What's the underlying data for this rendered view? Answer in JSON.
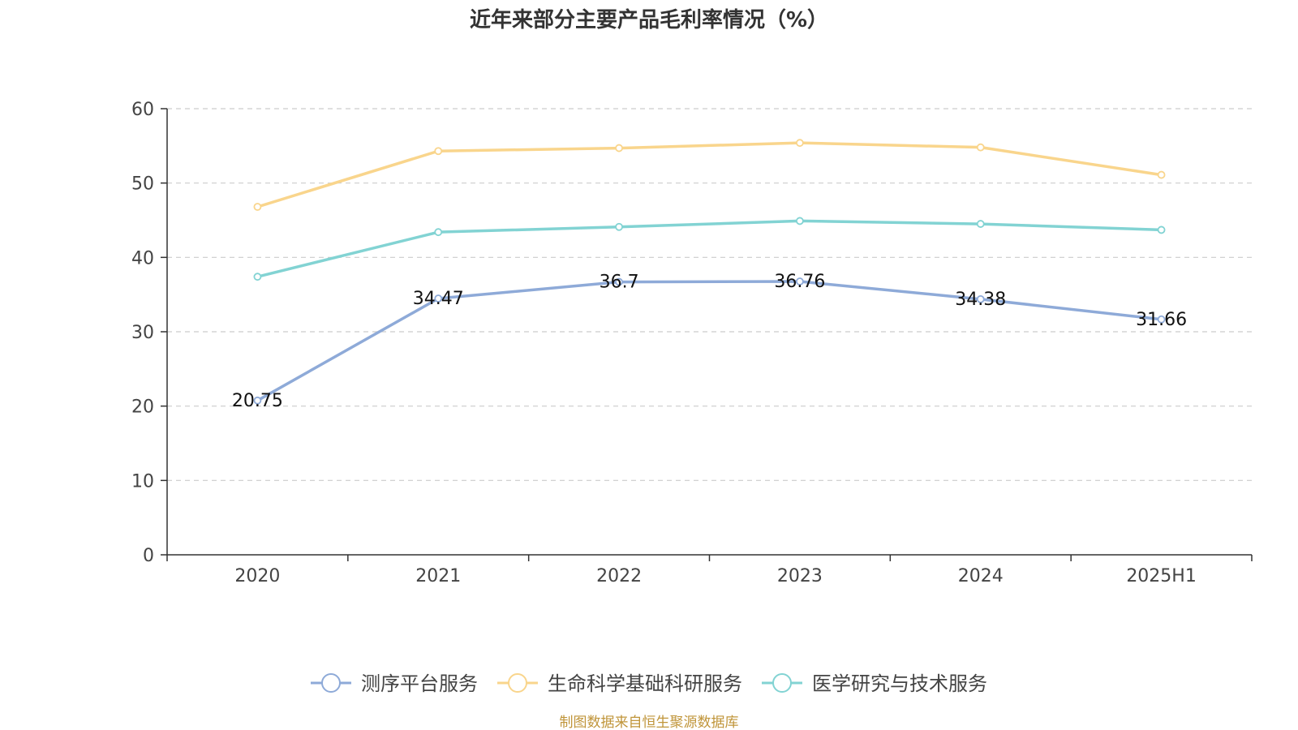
{
  "title": "近年来部分主要产品毛利率情况（%）",
  "source": "制图数据来自恒生聚源数据库",
  "chart_data": {
    "type": "line",
    "title": "近年来部分主要产品毛利率情况（%）",
    "categories": [
      "2020",
      "2021",
      "2022",
      "2023",
      "2024",
      "2025H1"
    ],
    "ylim": [
      0,
      60
    ],
    "yticks": [
      0,
      10,
      20,
      30,
      40,
      50,
      60
    ],
    "grid": true,
    "legend_position": "bottom",
    "series": [
      {
        "name": "测序平台服务",
        "color": "#8eaad8",
        "values": [
          20.75,
          34.47,
          36.7,
          36.76,
          34.38,
          31.66
        ],
        "labels": [
          "20.75",
          "34.47",
          "36.7",
          "36.76",
          "34.38",
          "31.66"
        ]
      },
      {
        "name": "生命科学基础科研服务",
        "color": "#f9d58c",
        "values": [
          46.8,
          54.3,
          54.7,
          55.4,
          54.8,
          51.1
        ]
      },
      {
        "name": "医学研究与技术服务",
        "color": "#82d3d3",
        "values": [
          37.4,
          43.4,
          44.1,
          44.9,
          44.5,
          43.7
        ]
      }
    ]
  }
}
